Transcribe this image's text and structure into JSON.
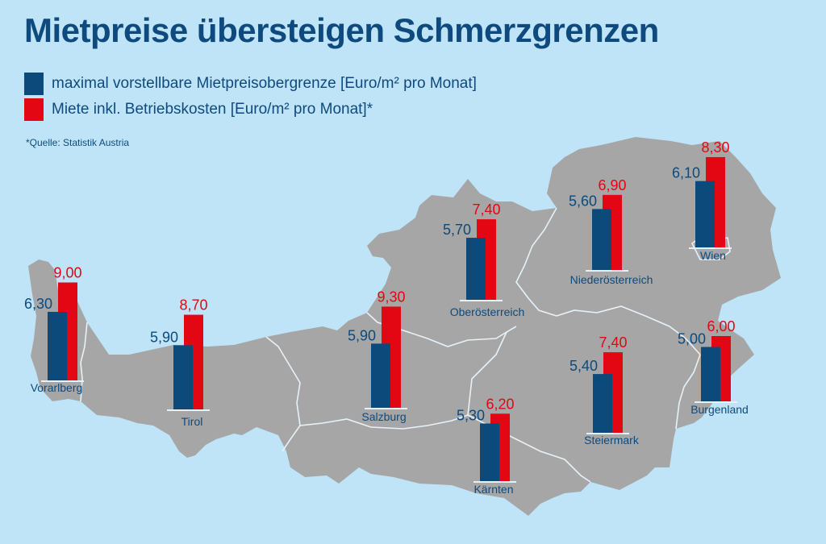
{
  "title": "Mietpreise übersteigen Schmerzgrenzen",
  "legend": [
    {
      "label": "maximal vorstellbare Mietpreisobergrenze [Euro/m² pro Monat]",
      "color": "#0d4a7c"
    },
    {
      "label": "Miete inkl. Betriebskosten [Euro/m² pro Monat]*",
      "color": "#e30613"
    }
  ],
  "source": "*Quelle: Statistik Austria",
  "colors": {
    "background": "#bfe4f7",
    "map": "#a6a6a6",
    "border": "#e6f2f9",
    "text": "#0e4a7e",
    "red": "#e30613",
    "blue": "#0d4a7c"
  },
  "chart_data": {
    "type": "bar",
    "categories": [
      "Vorarlberg",
      "Tirol",
      "Salzburg",
      "Oberösterreich",
      "Kärnten",
      "Niederösterreich",
      "Steiermark",
      "Wien",
      "Burgenland"
    ],
    "series": [
      {
        "name": "maximal vorstellbare Mietpreisobergrenze [Euro/m² pro Monat]",
        "values": [
          6.3,
          5.9,
          5.9,
          5.7,
          5.3,
          5.6,
          5.4,
          6.1,
          5.0
        ],
        "labels": [
          "6,30",
          "5,90",
          "5,90",
          "5,70",
          "5,30",
          "5,60",
          "5,40",
          "6,10",
          "5,00"
        ]
      },
      {
        "name": "Miete inkl. Betriebskosten [Euro/m² pro Monat]*",
        "values": [
          9.0,
          8.7,
          9.3,
          7.4,
          6.2,
          6.9,
          7.4,
          8.3,
          6.0
        ],
        "labels": [
          "9,00",
          "8,70",
          "9,30",
          "7,40",
          "6,20",
          "6,90",
          "7,40",
          "8,30",
          "6,00"
        ]
      }
    ]
  }
}
